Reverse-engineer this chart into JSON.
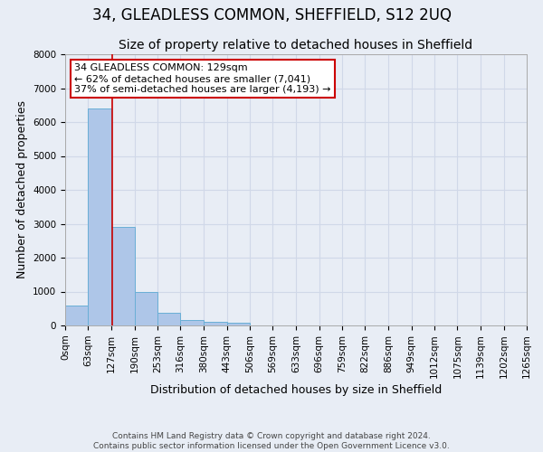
{
  "title": "34, GLEADLESS COMMON, SHEFFIELD, S12 2UQ",
  "subtitle": "Size of property relative to detached houses in Sheffield",
  "xlabel": "Distribution of detached houses by size in Sheffield",
  "ylabel": "Number of detached properties",
  "footer_line1": "Contains HM Land Registry data © Crown copyright and database right 2024.",
  "footer_line2": "Contains public sector information licensed under the Open Government Licence v3.0.",
  "bar_edges": [
    0,
    63,
    127,
    190,
    253,
    316,
    380,
    443,
    506,
    569,
    633,
    696,
    759,
    822,
    886,
    949,
    1012,
    1075,
    1139,
    1202,
    1265
  ],
  "bar_heights": [
    600,
    6400,
    2900,
    1000,
    380,
    170,
    100,
    80,
    0,
    0,
    0,
    0,
    0,
    0,
    0,
    0,
    0,
    0,
    0,
    0
  ],
  "bar_color": "#aec6e8",
  "bar_edgecolor": "#6aafd6",
  "property_line_x": 129,
  "property_line_color": "#cc0000",
  "annotation_line1": "34 GLEADLESS COMMON: 129sqm",
  "annotation_line2": "← 62% of detached houses are smaller (7,041)",
  "annotation_line3": "37% of semi-detached houses are larger (4,193) →",
  "annotation_box_color": "#ffffff",
  "annotation_box_edgecolor": "#cc0000",
  "ylim": [
    0,
    8000
  ],
  "yticks": [
    0,
    1000,
    2000,
    3000,
    4000,
    5000,
    6000,
    7000,
    8000
  ],
  "grid_color": "#d0d8e8",
  "background_color": "#e8edf5",
  "title_fontsize": 12,
  "subtitle_fontsize": 10,
  "axis_label_fontsize": 9,
  "tick_fontsize": 7.5,
  "annotation_fontsize": 8,
  "footer_fontsize": 6.5
}
